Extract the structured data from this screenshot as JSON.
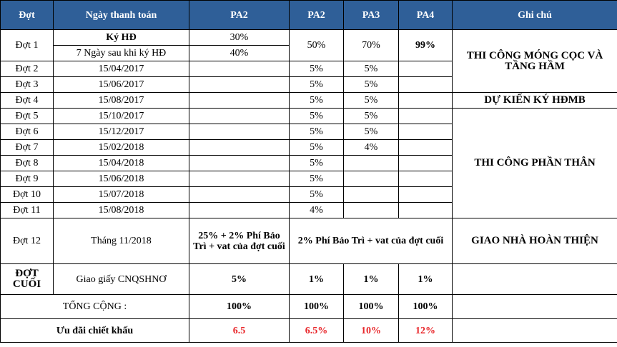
{
  "headers": {
    "dot": "Đợt",
    "date": "Ngày thanh toán",
    "pa2_a": "PA2",
    "pa2_b": "PA2",
    "pa3": "PA3",
    "pa4": "PA4",
    "note": "Ghi chú"
  },
  "row1": {
    "dot": "Đợt 1",
    "date_a": "Ký HĐ",
    "date_b": "7 Ngày sau khi ký HĐ",
    "pa2a_a": "30%",
    "pa2a_b": "40%",
    "pa2b": "50%",
    "pa3": "70%",
    "pa4": "99%"
  },
  "rows": [
    {
      "dot": "Đợt 2",
      "date": "15/04/2017",
      "pa2a": "",
      "pa2b": "5%",
      "pa3": "5%",
      "pa4": ""
    },
    {
      "dot": "Đợt 3",
      "date": "15/06/2017",
      "pa2a": "",
      "pa2b": "5%",
      "pa3": "5%",
      "pa4": ""
    },
    {
      "dot": "Đợt 4",
      "date": "15/08/2017",
      "pa2a": "",
      "pa2b": "5%",
      "pa3": "5%",
      "pa4": ""
    },
    {
      "dot": "Đợt 5",
      "date": "15/10/2017",
      "pa2a": "",
      "pa2b": "5%",
      "pa3": "5%",
      "pa4": ""
    },
    {
      "dot": "Đợt 6",
      "date": "15/12/2017",
      "pa2a": "",
      "pa2b": "5%",
      "pa3": "5%",
      "pa4": ""
    },
    {
      "dot": "Đợt 7",
      "date": "15/02/2018",
      "pa2a": "",
      "pa2b": "5%",
      "pa3": "4%",
      "pa4": ""
    },
    {
      "dot": "Đợt 8",
      "date": "15/04/2018",
      "pa2a": "",
      "pa2b": "5%",
      "pa3": "",
      "pa4": ""
    },
    {
      "dot": "Đợt 9",
      "date": "15/06/2018",
      "pa2a": "",
      "pa2b": "5%",
      "pa3": "",
      "pa4": ""
    },
    {
      "dot": "Đợt 10",
      "date": "15/07/2018",
      "pa2a": "",
      "pa2b": "5%",
      "pa3": "",
      "pa4": ""
    },
    {
      "dot": "Đợt 11",
      "date": "15/08/2018",
      "pa2a": "",
      "pa2b": "4%",
      "pa3": "",
      "pa4": ""
    }
  ],
  "notes": {
    "foundation": "THI CÔNG MÓNG CỌC VÀ TẦNG HẦM",
    "contract": "DỰ KIẾN KÝ HĐMB",
    "body": "THI CÔNG PHẦN THÂN",
    "handover": "GIAO NHÀ HOÀN THIỆN"
  },
  "row12": {
    "dot": "Đợt 12",
    "date": "Tháng 11/2018",
    "pa2a": "25% + 2% Phí Bảo Trì + vat của đợt cuối",
    "rest": "2% Phí Bảo Trì + vat của đợt cuối"
  },
  "row_last": {
    "dot": "ĐỢT CUỐI",
    "date": "Giao giấy CNQSHNƠ",
    "pa2a": "5%",
    "pa2b": "1%",
    "pa3": "1%",
    "pa4": "1%"
  },
  "total": {
    "label": "TỔNG CỘNG :",
    "pa2a": "100%",
    "pa2b": "100%",
    "pa3": "100%",
    "pa4": "100%"
  },
  "discount": {
    "label": "Ưu đãi chiết khấu",
    "pa2a": "6.5",
    "pa2b": "6.5%",
    "pa3": "10%",
    "pa4": "12%"
  },
  "colors": {
    "header_bg": "#2f5f98",
    "header_text": "#ffffff",
    "discount_value": "#e8262a"
  }
}
